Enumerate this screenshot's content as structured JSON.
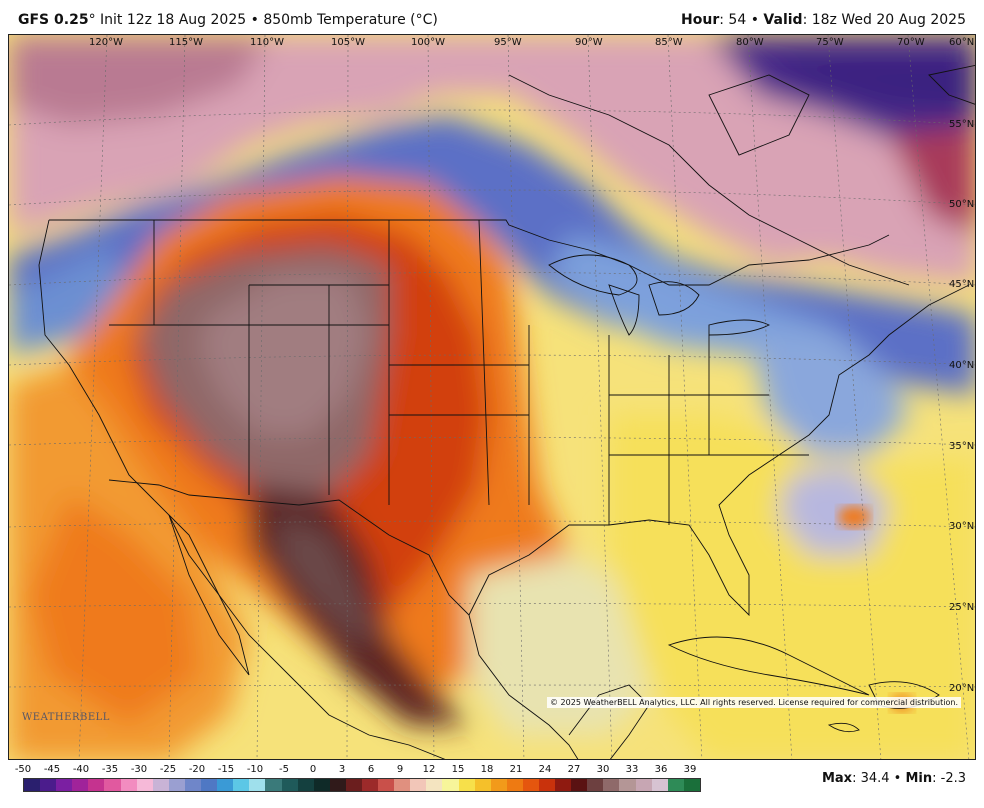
{
  "header": {
    "model": "GFS 0.25",
    "degree": "°",
    "init": "Init 12z 18 Aug 2025",
    "bullet": "•",
    "field": "850mb Temperature (°C)",
    "hour_label": "Hour",
    "hour_value": ": 54",
    "valid_label": "Valid",
    "valid_value": ": 18z Wed 20 Aug 2025"
  },
  "map": {
    "lon_labels": [
      "120°W",
      "115°W",
      "110°W",
      "105°W",
      "100°W",
      "95°W",
      "90°W",
      "85°W",
      "80°W",
      "75°W",
      "70°W",
      "60°N"
    ],
    "lat_labels": [
      "55°N",
      "50°N",
      "45°N",
      "40°N",
      "35°N",
      "30°N",
      "25°N",
      "20°N"
    ],
    "copyright": "© 2025 WeatherBELL Analytics, LLC. All rights reserved. License required for commercial distribution.",
    "logo_text": "WEATHERBELL"
  },
  "colorbar": {
    "labels": [
      "-50",
      "-45",
      "-40",
      "-35",
      "-30",
      "-25",
      "-20",
      "-15",
      "-10",
      "-5",
      "0",
      "3",
      "6",
      "9",
      "12",
      "15",
      "18",
      "21",
      "24",
      "27",
      "30",
      "33",
      "36",
      "39"
    ],
    "colors": [
      "#2a1f6e",
      "#4b1c8c",
      "#7b1fa2",
      "#a0239a",
      "#c5338f",
      "#e1599f",
      "#f28cc0",
      "#f6b9d8",
      "#c9b3d6",
      "#9a9fd1",
      "#6f86c9",
      "#4f78c4",
      "#3a9ad6",
      "#5cc7e6",
      "#9fe0ec",
      "#3a7a7a",
      "#1f5a5a",
      "#14403f",
      "#0f2a28",
      "#301a1a",
      "#6b1e1e",
      "#9c2a2a",
      "#c9504a",
      "#e0907f",
      "#f2c6b8",
      "#f4e4c0",
      "#f7f59a",
      "#f7e04a",
      "#f5c02a",
      "#f29a1a",
      "#ee7a12",
      "#e5560e",
      "#c9320c",
      "#8f1a10",
      "#5a1212",
      "#6d4040",
      "#8f6a6a",
      "#b49696",
      "#c7a6b3",
      "#d7c3d2",
      "#2e8b57",
      "#1a6f3a"
    ]
  },
  "stats": {
    "max_label": "Max",
    "max_value": ": 34.4 • ",
    "min_label": "Min",
    "min_value": ": -2.3"
  }
}
